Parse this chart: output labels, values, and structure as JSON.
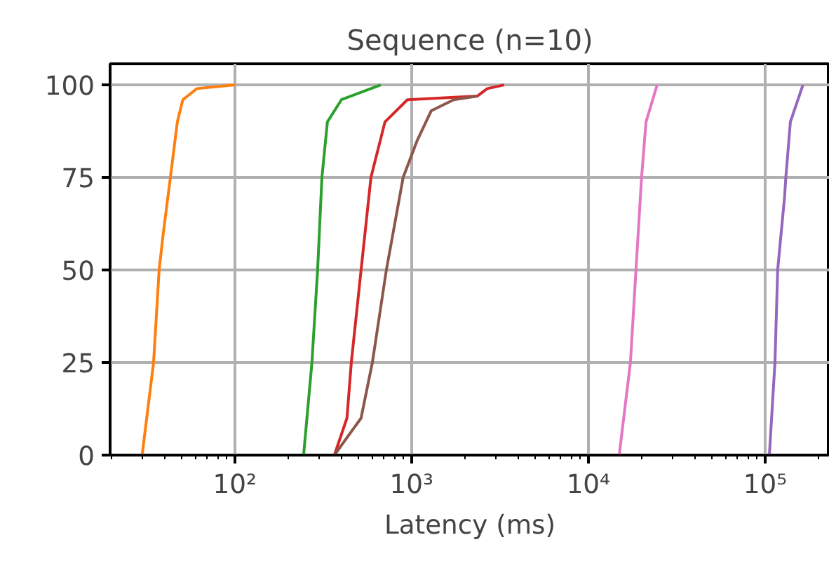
{
  "chart_data": {
    "type": "line",
    "title": "Sequence (n=10)",
    "xlabel": "Latency (ms)",
    "log": "x",
    "grid": true,
    "xlim": [
      19.7,
      232000
    ],
    "ylim": [
      0,
      105.7
    ],
    "xticks": [
      {
        "value": 100,
        "label": "10²"
      },
      {
        "value": 1000,
        "label": "10³"
      },
      {
        "value": 10000,
        "label": "10⁴"
      },
      {
        "value": 100000,
        "label": "10⁵"
      }
    ],
    "yticks": [
      0,
      25,
      50,
      75,
      100
    ],
    "series": [
      {
        "color": "#ff7f0e",
        "x": [
          29.9,
          34.7,
          37.3,
          39.4,
          43.2,
          47.3,
          50.8,
          61,
          100
        ],
        "values": [
          0,
          25,
          50,
          60,
          75,
          90,
          96,
          99,
          100
        ]
      },
      {
        "color": "#2ca02c",
        "x": [
          245,
          273,
          294,
          311,
          334,
          401,
          669
        ],
        "values": [
          0,
          25,
          50,
          75,
          90,
          96,
          100
        ]
      },
      {
        "color": "#d62728",
        "x": [
          366,
          431,
          456,
          518,
          589,
          707,
          947,
          2360,
          2680,
          3340
        ],
        "values": [
          0,
          10,
          25,
          50,
          75,
          90,
          96,
          97,
          99,
          100
        ]
      },
      {
        "color": "#9467bd",
        "x": [
          105700,
          113700,
          117800,
          129000,
          131000,
          139000,
          163700
        ],
        "values": [
          0,
          25,
          50,
          70,
          75,
          90,
          100
        ]
      },
      {
        "color": "#8c564b",
        "x": [
          366,
          518,
          600,
          720,
          896,
          1076,
          1291,
          1730,
          2360
        ],
        "values": [
          0,
          10,
          25,
          50,
          75,
          85,
          93,
          96,
          97
        ]
      },
      {
        "color": "#e377c2",
        "x": [
          14950,
          17300,
          18600,
          20000,
          21200,
          24500
        ],
        "values": [
          0,
          25,
          50,
          75,
          90,
          100
        ]
      }
    ]
  }
}
